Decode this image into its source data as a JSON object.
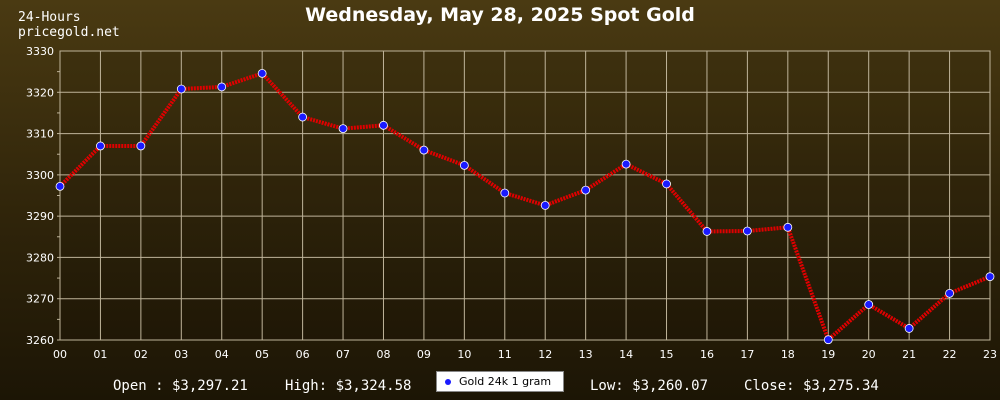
{
  "header": {
    "period": "24-Hours",
    "site": "pricegold.net",
    "title": "Wednesday, May 28, 2025 Spot Gold"
  },
  "stats": {
    "open": "Open : $3,297.21",
    "high": "High: $3,324.58",
    "low": "Low: $3,260.07",
    "close": "Close: $3,275.34"
  },
  "chart_data": {
    "type": "line",
    "categories": [
      "00",
      "01",
      "02",
      "03",
      "04",
      "05",
      "06",
      "07",
      "08",
      "09",
      "10",
      "11",
      "12",
      "13",
      "14",
      "15",
      "16",
      "17",
      "18",
      "19",
      "20",
      "21",
      "22",
      "23"
    ],
    "series": [
      {
        "name": "Gold 24k 1 gram",
        "values": [
          3297.21,
          3307.0,
          3307.0,
          3320.8,
          3321.3,
          3324.58,
          3314.0,
          3311.2,
          3312.0,
          3306.0,
          3302.3,
          3295.6,
          3292.6,
          3296.3,
          3302.6,
          3297.8,
          3286.3,
          3286.4,
          3287.3,
          3260.07,
          3268.6,
          3262.8,
          3271.3,
          3275.34
        ]
      }
    ],
    "yticks": [
      3260,
      3270,
      3280,
      3290,
      3300,
      3310,
      3320,
      3330
    ],
    "ylim": [
      3260,
      3330
    ],
    "grid": true,
    "legend_position": "bottom-center",
    "colors": {
      "line": "#e00000",
      "marker": "#1a1aff",
      "grid": "#bfb49a",
      "axis_text": "#ffffff"
    }
  }
}
